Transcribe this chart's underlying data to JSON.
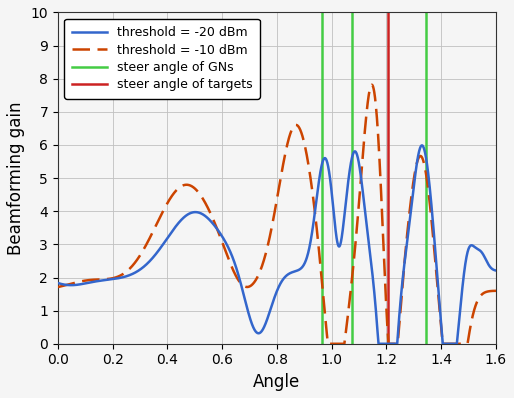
{
  "title": "",
  "xlabel": "Angle",
  "ylabel": "Beamforming gain",
  "xlim": [
    0,
    1.6
  ],
  "ylim": [
    0,
    10
  ],
  "xticks": [
    0,
    0.2,
    0.4,
    0.6,
    0.8,
    1.0,
    1.2,
    1.4,
    1.6
  ],
  "yticks": [
    0,
    1,
    2,
    3,
    4,
    5,
    6,
    7,
    8,
    9,
    10
  ],
  "green_vlines": [
    0.965,
    1.075,
    1.345
  ],
  "red_vline": 1.205,
  "blue_label": "threshold = -20 dBm",
  "orange_label": "threshold = -10 dBm",
  "green_label": "steer angle of GNs",
  "red_label": "steer angle of targets",
  "blue_color": "#3366cc",
  "orange_color": "#cc4400",
  "green_color": "#44cc44",
  "red_color": "#cc2222",
  "figsize": [
    5.14,
    3.98
  ],
  "dpi": 100
}
